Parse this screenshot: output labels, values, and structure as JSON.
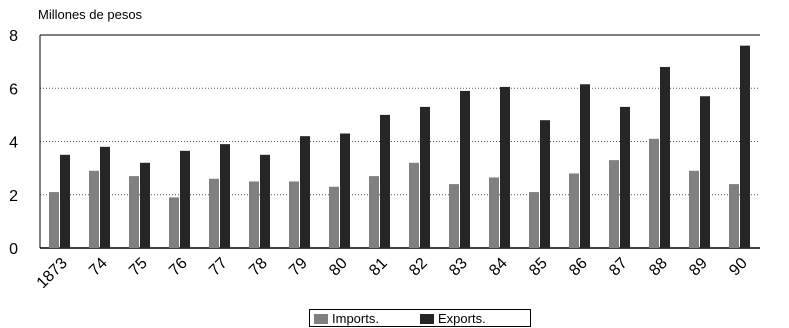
{
  "chart_data": {
    "type": "bar",
    "ylabel": "Millones de pesos",
    "ylim": [
      0,
      8
    ],
    "yticks": [
      0,
      2,
      4,
      6,
      8
    ],
    "grid": "horizontal dotted",
    "legend_position": "bottom",
    "categories": [
      "1873",
      "74",
      "75",
      "76",
      "77",
      "78",
      "79",
      "80",
      "81",
      "82",
      "83",
      "84",
      "85",
      "86",
      "87",
      "88",
      "89",
      "90"
    ],
    "series": [
      {
        "name": "Imports.",
        "color": "#808080",
        "values": [
          2.1,
          2.9,
          2.7,
          1.9,
          2.6,
          2.5,
          2.5,
          2.3,
          2.7,
          3.2,
          2.4,
          2.65,
          2.1,
          2.8,
          3.3,
          4.1,
          2.9,
          2.4
        ]
      },
      {
        "name": "Exports.",
        "color": "#262626",
        "values": [
          3.5,
          3.8,
          3.2,
          3.65,
          3.9,
          3.5,
          4.2,
          4.3,
          5.0,
          5.3,
          5.9,
          6.05,
          4.8,
          6.15,
          5.3,
          6.8,
          5.7,
          7.6
        ]
      }
    ]
  }
}
